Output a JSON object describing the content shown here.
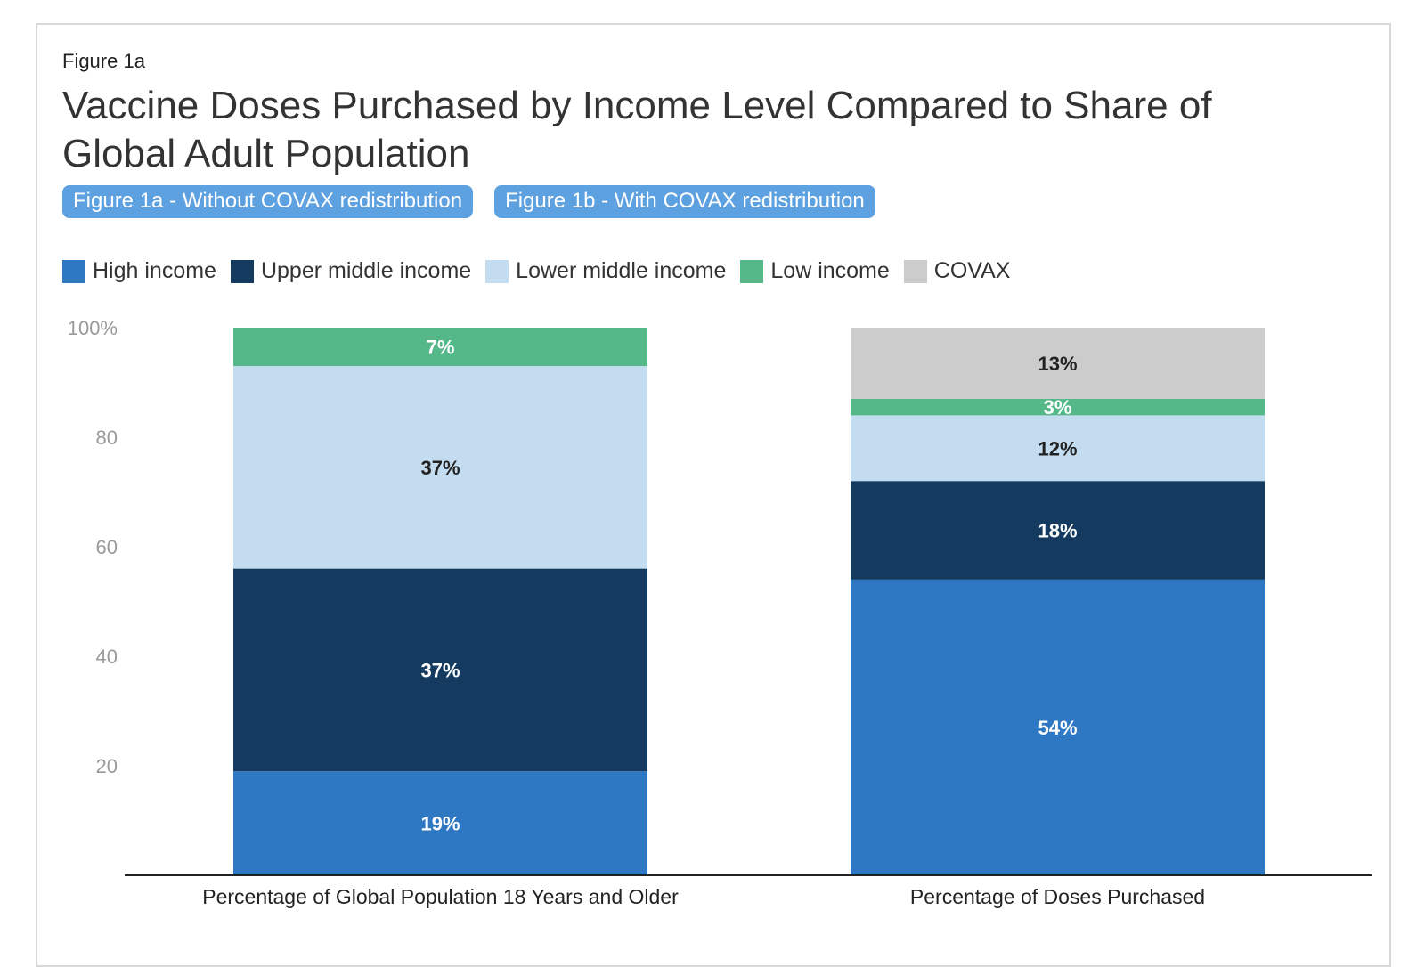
{
  "figure_label": "Figure 1a",
  "title": "Vaccine Doses Purchased by Income Level Compared to Share of Global Adult Population",
  "tabs": [
    {
      "label": "Figure 1a - Without COVAX redistribution"
    },
    {
      "label": "Figure 1b - With COVAX redistribution"
    }
  ],
  "colors": {
    "high": "#2e77c3",
    "upper_middle": "#143b5f",
    "lower_middle": "#c4dcf0",
    "low": "#54b889",
    "covax": "#cccccc",
    "tab": "#5da1e0"
  },
  "chart_data": {
    "type": "bar",
    "stacked": true,
    "categories": [
      "Percentage of Global Population 18 Years and Older",
      "Percentage of Doses Purchased"
    ],
    "series": [
      {
        "name": "High income",
        "key": "high",
        "values": [
          19,
          54
        ],
        "labels": [
          "19%",
          "54%"
        ],
        "label_color": "#ffffff"
      },
      {
        "name": "Upper middle income",
        "key": "upper_middle",
        "values": [
          37,
          18
        ],
        "labels": [
          "37%",
          "18%"
        ],
        "label_color": "#ffffff"
      },
      {
        "name": "Lower middle income",
        "key": "lower_middle",
        "values": [
          37,
          12
        ],
        "labels": [
          "37%",
          "12%"
        ],
        "label_color": "#222222"
      },
      {
        "name": "Low income",
        "key": "low",
        "values": [
          7,
          3
        ],
        "labels": [
          "7%",
          "3%"
        ],
        "label_color": "#ffffff"
      },
      {
        "name": "COVAX",
        "key": "covax",
        "values": [
          0,
          13
        ],
        "labels": [
          "",
          "13%"
        ],
        "label_color": "#222222"
      }
    ],
    "y_ticks": [
      {
        "value": 100,
        "label": "100%"
      },
      {
        "value": 80,
        "label": "80"
      },
      {
        "value": 60,
        "label": "60"
      },
      {
        "value": 40,
        "label": "40"
      },
      {
        "value": 20,
        "label": "20"
      }
    ],
    "ylim": [
      0,
      100
    ],
    "legend_position": "top-left",
    "grid": false
  }
}
